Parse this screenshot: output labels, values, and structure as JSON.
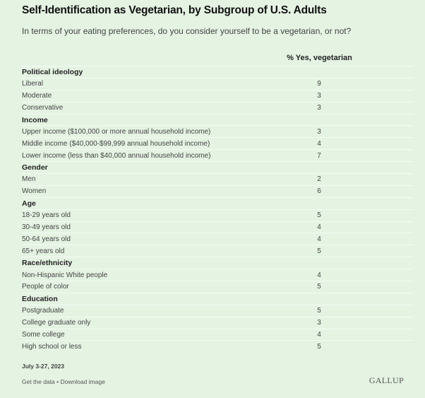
{
  "chart_data": {
    "type": "table",
    "title": "Self-Identification as Vegetarian, by Subgroup of U.S. Adults",
    "subtitle": "In terms of your eating preferences, do you consider yourself to be a vegetarian, or not?",
    "column_header": "% Yes, vegetarian",
    "groups": [
      {
        "name": "Political ideology",
        "rows": [
          {
            "label": "Liberal",
            "value": "9"
          },
          {
            "label": "Moderate",
            "value": "3"
          },
          {
            "label": "Conservative",
            "value": "3"
          }
        ]
      },
      {
        "name": "Income",
        "rows": [
          {
            "label": "Upper income ($100,000 or more annual household income)",
            "value": "3"
          },
          {
            "label": "Middle income ($40,000-$99,999 annual household income)",
            "value": "4"
          },
          {
            "label": "Lower income (less than $40,000 annual household income)",
            "value": "7"
          }
        ]
      },
      {
        "name": "Gender",
        "rows": [
          {
            "label": "Men",
            "value": "2"
          },
          {
            "label": "Women",
            "value": "6"
          }
        ]
      },
      {
        "name": "Age",
        "rows": [
          {
            "label": "18-29 years old",
            "value": "5"
          },
          {
            "label": "30-49 years old",
            "value": "4"
          },
          {
            "label": "50-64 years old",
            "value": "4"
          },
          {
            "label": "65+ years old",
            "value": "5"
          }
        ]
      },
      {
        "name": "Race/ethnicity",
        "rows": [
          {
            "label": "Non-Hispanic White people",
            "value": "4"
          },
          {
            "label": "People of color",
            "value": "5"
          }
        ]
      },
      {
        "name": "Education",
        "rows": [
          {
            "label": "Postgraduate",
            "value": "5"
          },
          {
            "label": "College graduate only",
            "value": "3"
          },
          {
            "label": "Some college",
            "value": "4"
          },
          {
            "label": "High school or less",
            "value": "5"
          }
        ]
      }
    ]
  },
  "footer": {
    "date": "July 3-27, 2023",
    "get_data": "Get the data",
    "separator": " • ",
    "download": "Download image",
    "logo": "GALLUP"
  },
  "colors": {
    "background": "#e4f3e2"
  }
}
